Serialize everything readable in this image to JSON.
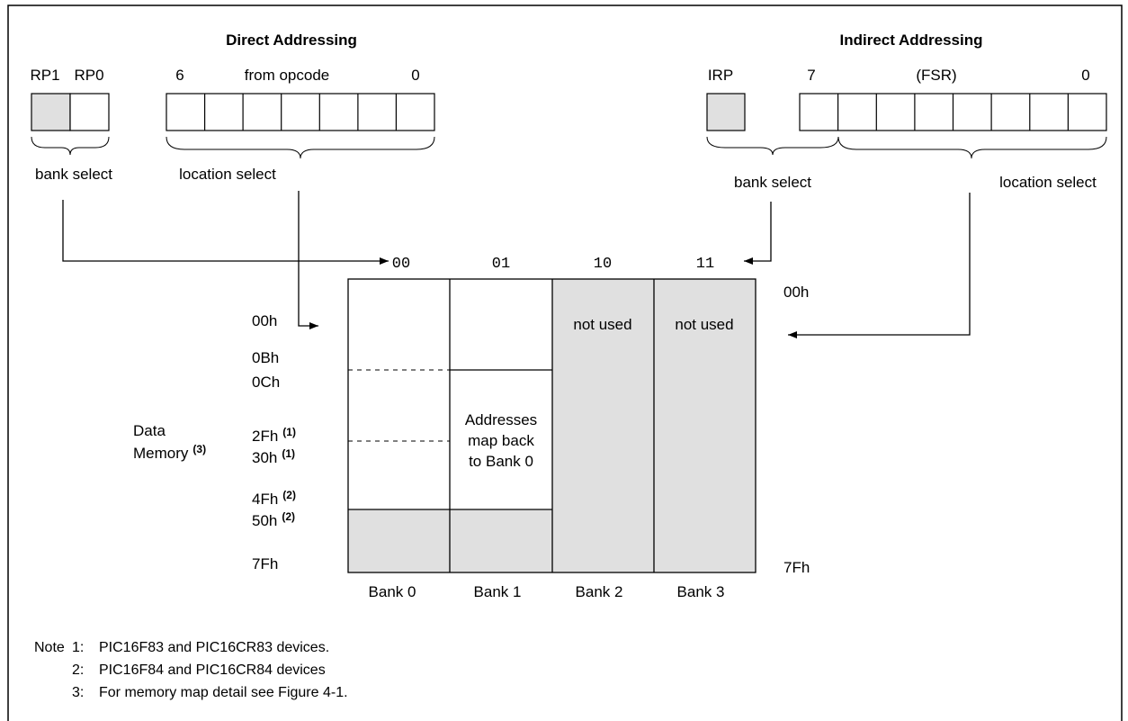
{
  "colors": {
    "shade": "#e0e0e0",
    "line": "#000000"
  },
  "direct": {
    "title": "Direct Addressing",
    "rp1": "RP1",
    "rp0": "RP0",
    "bit_hi": "6",
    "bit_label": "from opcode",
    "bit_lo": "0",
    "bank_select": "bank select",
    "location_select": "location select"
  },
  "indirect": {
    "title": "Indirect Addressing",
    "irp": "IRP",
    "bit_hi": "7",
    "bit_label": "(FSR)",
    "bit_lo": "0",
    "bank_select": "bank select",
    "location_select": "location select"
  },
  "bank_codes": [
    "00",
    "01",
    "10",
    "11"
  ],
  "banks": [
    "Bank 0",
    "Bank 1",
    "Bank 2",
    "Bank 3"
  ],
  "bank_texts": {
    "not_used": "not used",
    "addresses_line1": "Addresses",
    "addresses_line2": "map back",
    "addresses_line3": "to Bank 0"
  },
  "addresses": {
    "a00h": "00h",
    "a0Bh": "0Bh",
    "a0Ch": "0Ch",
    "a2Fh": "2Fh",
    "a30h": "30h",
    "a4Fh": "4Fh",
    "a50h": "50h",
    "a7Fh": "7Fh",
    "right_00h": "00h",
    "right_7Fh": "7Fh"
  },
  "superscripts": {
    "n1": "(1)",
    "n2": "(2)",
    "n3": "(3)"
  },
  "data_memory": {
    "line1": "Data",
    "line2": "Memory"
  },
  "notes": {
    "prefix": "Note",
    "items": [
      {
        "num": "1:",
        "text": "PIC16F83 and PIC16CR83 devices."
      },
      {
        "num": "2:",
        "text": "PIC16F84 and PIC16CR84 devices"
      },
      {
        "num": "3:",
        "text": "For memory map detail see Figure 4-1."
      }
    ]
  }
}
